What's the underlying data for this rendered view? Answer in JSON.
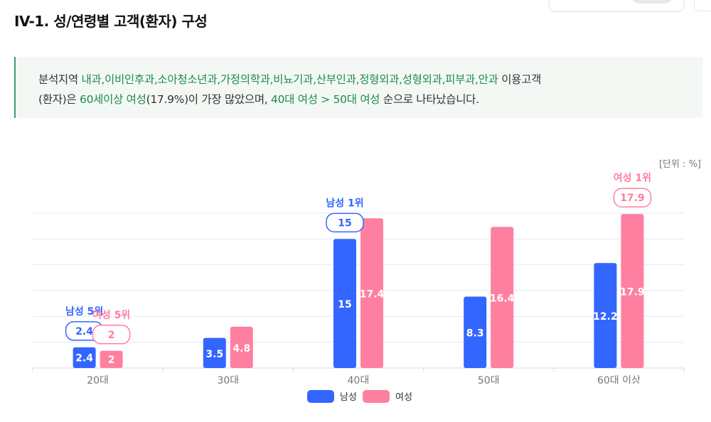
{
  "page": {
    "title": "IV-1. 성/연령별 고객(환자) 구성",
    "unit": "[단위 : %]"
  },
  "summary": {
    "line1": [
      {
        "text": "분석지역 ",
        "highlight": false
      },
      {
        "text": "내과,이비인후과,소아청소년과,가정의학과,비뇨기과,산부인과,정형외과,성형외과,피부과,안과",
        "highlight": true
      },
      {
        "text": " 이용고객",
        "highlight": false
      }
    ],
    "line2": [
      {
        "text": "(환자)은 ",
        "highlight": false
      },
      {
        "text": "60세이상 여성",
        "highlight": true
      },
      {
        "text": "(17.9%)이 가장 많았으며, ",
        "highlight": false
      },
      {
        "text": "40대 여성 > 50대 여성",
        "highlight": true
      },
      {
        "text": " 순으로 나타났습니다.",
        "highlight": false
      }
    ]
  },
  "colors": {
    "male": "#3366ff",
    "female": "#ff7fa0",
    "highlight_text": "#1f8a4f",
    "grid": "#e6e9f2"
  },
  "chart_data": {
    "type": "bar",
    "categories": [
      "20대",
      "30대",
      "40대",
      "50대",
      "60대 이상"
    ],
    "series": [
      {
        "name": "남성",
        "values": [
          2.4,
          3.5,
          15,
          8.3,
          12.2
        ]
      },
      {
        "name": "여성",
        "values": [
          2,
          4.8,
          17.4,
          16.4,
          17.9
        ]
      }
    ],
    "ylim": [
      0,
      18
    ],
    "grid": true,
    "legend": "bottom-center",
    "callouts": [
      {
        "series": "남성",
        "category": "20대",
        "label": "남성 5위",
        "value": "2.4"
      },
      {
        "series": "여성",
        "category": "20대",
        "label": "여성 5위",
        "value": "2"
      },
      {
        "series": "남성",
        "category": "40대",
        "label": "남성 1위",
        "value": "15"
      },
      {
        "series": "여성",
        "category": "60대 이상",
        "label": "여성 1위",
        "value": "17.9"
      }
    ]
  }
}
